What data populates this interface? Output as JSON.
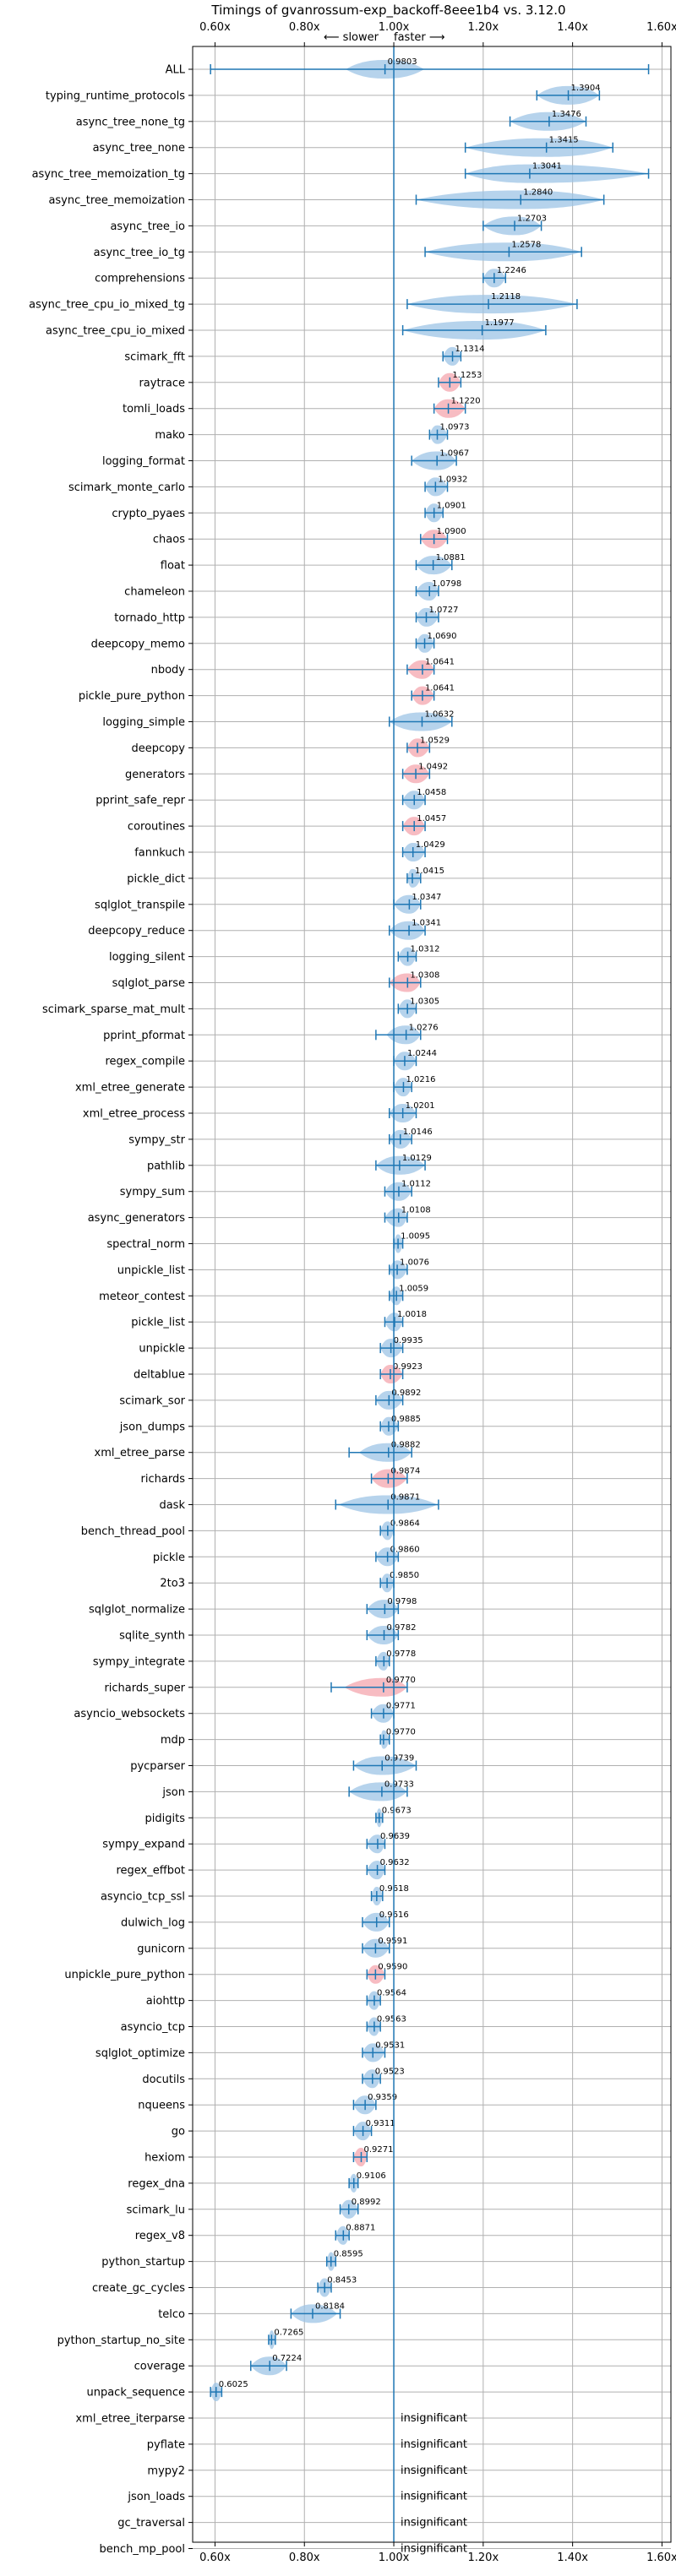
{
  "chart_data": {
    "type": "violin",
    "title": "Timings of gvanrossum-exp_backoff-8eee1b4 vs. 3.12.0",
    "subtitle_slower": "⟵ slower",
    "subtitle_faster": "faster ⟶",
    "x_ticks": [
      "0.60x",
      "0.80x",
      "1.00x",
      "1.20x",
      "1.40x",
      "1.60x"
    ],
    "x_tick_values": [
      0.6,
      0.8,
      1.0,
      1.2,
      1.4,
      1.6
    ],
    "xlim": [
      0.55,
      1.62
    ],
    "grid": true,
    "colors": {
      "violin": "#9dc4e6",
      "violin_highlight": "#f4a6ad",
      "line": "#1f77b4"
    },
    "benchmarks": [
      {
        "name": "ALL",
        "value": 0.9803,
        "lo": 0.59,
        "hi": 1.57,
        "spread": 0.04,
        "highlight": false,
        "label": "0.9803"
      },
      {
        "name": "typing_runtime_protocols",
        "value": 1.3904,
        "lo": 1.32,
        "hi": 1.46,
        "spread": 0.07,
        "highlight": false,
        "label": "1.3904"
      },
      {
        "name": "async_tree_none_tg",
        "value": 1.3476,
        "lo": 1.26,
        "hi": 1.43,
        "spread": 0.06,
        "highlight": false,
        "label": "1.3476"
      },
      {
        "name": "async_tree_none",
        "value": 1.3415,
        "lo": 1.16,
        "hi": 1.49,
        "spread": 0.1,
        "highlight": false,
        "label": "1.3415"
      },
      {
        "name": "async_tree_memoization_tg",
        "value": 1.3041,
        "lo": 1.16,
        "hi": 1.57,
        "spread": 0.13,
        "highlight": false,
        "label": "1.3041"
      },
      {
        "name": "async_tree_memoization",
        "value": 1.284,
        "lo": 1.05,
        "hi": 1.47,
        "spread": 0.14,
        "highlight": false,
        "label": "1.2840"
      },
      {
        "name": "async_tree_io",
        "value": 1.2703,
        "lo": 1.2,
        "hi": 1.33,
        "spread": 0.05,
        "highlight": false,
        "label": "1.2703"
      },
      {
        "name": "async_tree_io_tg",
        "value": 1.2578,
        "lo": 1.07,
        "hi": 1.42,
        "spread": 0.12,
        "highlight": false,
        "label": "1.2578"
      },
      {
        "name": "comprehensions",
        "value": 1.2246,
        "lo": 1.2,
        "hi": 1.25,
        "spread": 0.02,
        "highlight": false,
        "label": "1.2246"
      },
      {
        "name": "async_tree_cpu_io_mixed_tg",
        "value": 1.2118,
        "lo": 1.03,
        "hi": 1.41,
        "spread": 0.12,
        "highlight": false,
        "label": "1.2118"
      },
      {
        "name": "async_tree_cpu_io_mixed",
        "value": 1.1977,
        "lo": 1.02,
        "hi": 1.34,
        "spread": 0.11,
        "highlight": false,
        "label": "1.1977"
      },
      {
        "name": "scimark_fft",
        "value": 1.1314,
        "lo": 1.11,
        "hi": 1.15,
        "spread": 0.02,
        "highlight": false,
        "label": "1.1314"
      },
      {
        "name": "raytrace",
        "value": 1.1253,
        "lo": 1.1,
        "hi": 1.15,
        "spread": 0.02,
        "highlight": true,
        "label": "1.1253"
      },
      {
        "name": "tomli_loads",
        "value": 1.122,
        "lo": 1.09,
        "hi": 1.16,
        "spread": 0.03,
        "highlight": true,
        "label": "1.1220"
      },
      {
        "name": "mako",
        "value": 1.0973,
        "lo": 1.08,
        "hi": 1.12,
        "spread": 0.015,
        "highlight": false,
        "label": "1.0973"
      },
      {
        "name": "logging_format",
        "value": 1.0967,
        "lo": 1.04,
        "hi": 1.14,
        "spread": 0.04,
        "highlight": false,
        "label": "1.0967"
      },
      {
        "name": "scimark_monte_carlo",
        "value": 1.0932,
        "lo": 1.07,
        "hi": 1.12,
        "spread": 0.02,
        "highlight": false,
        "label": "1.0932"
      },
      {
        "name": "crypto_pyaes",
        "value": 1.0901,
        "lo": 1.07,
        "hi": 1.11,
        "spread": 0.02,
        "highlight": false,
        "label": "1.0901"
      },
      {
        "name": "chaos",
        "value": 1.09,
        "lo": 1.06,
        "hi": 1.12,
        "spread": 0.025,
        "highlight": true,
        "label": "1.0900"
      },
      {
        "name": "float",
        "value": 1.0881,
        "lo": 1.05,
        "hi": 1.13,
        "spread": 0.03,
        "highlight": false,
        "label": "1.0881"
      },
      {
        "name": "chameleon",
        "value": 1.0798,
        "lo": 1.05,
        "hi": 1.1,
        "spread": 0.02,
        "highlight": false,
        "label": "1.0798"
      },
      {
        "name": "tornado_http",
        "value": 1.0727,
        "lo": 1.05,
        "hi": 1.1,
        "spread": 0.025,
        "highlight": false,
        "label": "1.0727"
      },
      {
        "name": "deepcopy_memo",
        "value": 1.069,
        "lo": 1.05,
        "hi": 1.09,
        "spread": 0.015,
        "highlight": false,
        "label": "1.0690"
      },
      {
        "name": "nbody",
        "value": 1.0641,
        "lo": 1.03,
        "hi": 1.09,
        "spread": 0.02,
        "highlight": true,
        "label": "1.0641"
      },
      {
        "name": "pickle_pure_python",
        "value": 1.0641,
        "lo": 1.04,
        "hi": 1.09,
        "spread": 0.02,
        "highlight": true,
        "label": "1.0641"
      },
      {
        "name": "logging_simple",
        "value": 1.0632,
        "lo": 0.99,
        "hi": 1.13,
        "spread": 0.04,
        "highlight": false,
        "label": "1.0632"
      },
      {
        "name": "deepcopy",
        "value": 1.0529,
        "lo": 1.03,
        "hi": 1.08,
        "spread": 0.02,
        "highlight": true,
        "label": "1.0529"
      },
      {
        "name": "generators",
        "value": 1.0492,
        "lo": 1.02,
        "hi": 1.08,
        "spread": 0.025,
        "highlight": true,
        "label": "1.0492"
      },
      {
        "name": "pprint_safe_repr",
        "value": 1.0458,
        "lo": 1.02,
        "hi": 1.07,
        "spread": 0.02,
        "highlight": false,
        "label": "1.0458"
      },
      {
        "name": "coroutines",
        "value": 1.0457,
        "lo": 1.02,
        "hi": 1.07,
        "spread": 0.02,
        "highlight": true,
        "label": "1.0457"
      },
      {
        "name": "fannkuch",
        "value": 1.0429,
        "lo": 1.02,
        "hi": 1.07,
        "spread": 0.015,
        "highlight": false,
        "label": "1.0429"
      },
      {
        "name": "pickle_dict",
        "value": 1.0415,
        "lo": 1.03,
        "hi": 1.06,
        "spread": 0.012,
        "highlight": false,
        "label": "1.0415"
      },
      {
        "name": "sqlglot_transpile",
        "value": 1.0347,
        "lo": 1.0,
        "hi": 1.06,
        "spread": 0.02,
        "highlight": false,
        "label": "1.0347"
      },
      {
        "name": "deepcopy_reduce",
        "value": 1.0341,
        "lo": 0.99,
        "hi": 1.07,
        "spread": 0.025,
        "highlight": false,
        "label": "1.0341"
      },
      {
        "name": "logging_silent",
        "value": 1.0312,
        "lo": 1.01,
        "hi": 1.05,
        "spread": 0.015,
        "highlight": false,
        "label": "1.0312"
      },
      {
        "name": "sqlglot_parse",
        "value": 1.0308,
        "lo": 0.99,
        "hi": 1.06,
        "spread": 0.025,
        "highlight": true,
        "label": "1.0308"
      },
      {
        "name": "scimark_sparse_mat_mult",
        "value": 1.0305,
        "lo": 1.01,
        "hi": 1.05,
        "spread": 0.012,
        "highlight": false,
        "label": "1.0305"
      },
      {
        "name": "pprint_pformat",
        "value": 1.0276,
        "lo": 0.96,
        "hi": 1.06,
        "spread": 0.02,
        "highlight": false,
        "label": "1.0276"
      },
      {
        "name": "regex_compile",
        "value": 1.0244,
        "lo": 1.0,
        "hi": 1.05,
        "spread": 0.015,
        "highlight": false,
        "label": "1.0244"
      },
      {
        "name": "xml_etree_generate",
        "value": 1.0216,
        "lo": 1.0,
        "hi": 1.04,
        "spread": 0.015,
        "highlight": false,
        "label": "1.0216"
      },
      {
        "name": "xml_etree_process",
        "value": 1.0201,
        "lo": 0.99,
        "hi": 1.05,
        "spread": 0.02,
        "highlight": false,
        "label": "1.0201"
      },
      {
        "name": "sympy_str",
        "value": 1.0146,
        "lo": 0.99,
        "hi": 1.04,
        "spread": 0.02,
        "highlight": false,
        "label": "1.0146"
      },
      {
        "name": "pathlib",
        "value": 1.0129,
        "lo": 0.96,
        "hi": 1.07,
        "spread": 0.03,
        "highlight": false,
        "label": "1.0129"
      },
      {
        "name": "sympy_sum",
        "value": 1.0112,
        "lo": 0.98,
        "hi": 1.04,
        "spread": 0.02,
        "highlight": false,
        "label": "1.0112"
      },
      {
        "name": "async_generators",
        "value": 1.0108,
        "lo": 0.98,
        "hi": 1.03,
        "spread": 0.02,
        "highlight": false,
        "label": "1.0108"
      },
      {
        "name": "spectral_norm",
        "value": 1.0095,
        "lo": 1.0,
        "hi": 1.02,
        "spread": 0.008,
        "highlight": false,
        "label": "1.0095"
      },
      {
        "name": "unpickle_list",
        "value": 1.0076,
        "lo": 0.99,
        "hi": 1.03,
        "spread": 0.015,
        "highlight": false,
        "label": "1.0076"
      },
      {
        "name": "meteor_contest",
        "value": 1.0059,
        "lo": 0.99,
        "hi": 1.02,
        "spread": 0.01,
        "highlight": false,
        "label": "1.0059"
      },
      {
        "name": "pickle_list",
        "value": 1.0018,
        "lo": 0.98,
        "hi": 1.02,
        "spread": 0.015,
        "highlight": false,
        "label": "1.0018"
      },
      {
        "name": "unpickle",
        "value": 0.9935,
        "lo": 0.97,
        "hi": 1.02,
        "spread": 0.015,
        "highlight": false,
        "label": "0.9935"
      },
      {
        "name": "deltablue",
        "value": 0.9923,
        "lo": 0.97,
        "hi": 1.02,
        "spread": 0.02,
        "highlight": true,
        "label": "0.9923"
      },
      {
        "name": "scimark_sor",
        "value": 0.9892,
        "lo": 0.96,
        "hi": 1.02,
        "spread": 0.02,
        "highlight": false,
        "label": "0.9892"
      },
      {
        "name": "json_dumps",
        "value": 0.9885,
        "lo": 0.97,
        "hi": 1.01,
        "spread": 0.015,
        "highlight": false,
        "label": "0.9885"
      },
      {
        "name": "xml_etree_parse",
        "value": 0.9882,
        "lo": 0.9,
        "hi": 1.04,
        "spread": 0.03,
        "highlight": false,
        "label": "0.9882"
      },
      {
        "name": "richards",
        "value": 0.9874,
        "lo": 0.95,
        "hi": 1.03,
        "spread": 0.04,
        "highlight": true,
        "label": "0.9874"
      },
      {
        "name": "dask",
        "value": 0.9871,
        "lo": 0.87,
        "hi": 1.1,
        "spread": 0.05,
        "highlight": false,
        "label": "0.9871"
      },
      {
        "name": "bench_thread_pool",
        "value": 0.9864,
        "lo": 0.97,
        "hi": 1.0,
        "spread": 0.012,
        "highlight": false,
        "label": "0.9864"
      },
      {
        "name": "pickle",
        "value": 0.986,
        "lo": 0.96,
        "hi": 1.01,
        "spread": 0.015,
        "highlight": false,
        "label": "0.9860"
      },
      {
        "name": "2to3",
        "value": 0.985,
        "lo": 0.97,
        "hi": 1.0,
        "spread": 0.01,
        "highlight": false,
        "label": "0.9850"
      },
      {
        "name": "sqlglot_normalize",
        "value": 0.9798,
        "lo": 0.94,
        "hi": 1.01,
        "spread": 0.02,
        "highlight": false,
        "label": "0.9798"
      },
      {
        "name": "sqlite_synth",
        "value": 0.9782,
        "lo": 0.94,
        "hi": 1.01,
        "spread": 0.02,
        "highlight": false,
        "label": "0.9782"
      },
      {
        "name": "sympy_integrate",
        "value": 0.9778,
        "lo": 0.96,
        "hi": 0.99,
        "spread": 0.012,
        "highlight": false,
        "label": "0.9778"
      },
      {
        "name": "richards_super",
        "value": 0.977,
        "lo": 0.86,
        "hi": 1.03,
        "spread": 0.04,
        "highlight": true,
        "label": "0.9770"
      },
      {
        "name": "asyncio_websockets",
        "value": 0.9771,
        "lo": 0.95,
        "hi": 1.0,
        "spread": 0.015,
        "highlight": false,
        "label": "0.9771"
      },
      {
        "name": "mdp",
        "value": 0.977,
        "lo": 0.97,
        "hi": 0.99,
        "spread": 0.008,
        "highlight": false,
        "label": "0.9770"
      },
      {
        "name": "pycparser",
        "value": 0.9739,
        "lo": 0.91,
        "hi": 1.05,
        "spread": 0.04,
        "highlight": false,
        "label": "0.9739"
      },
      {
        "name": "json",
        "value": 0.9733,
        "lo": 0.9,
        "hi": 1.03,
        "spread": 0.04,
        "highlight": false,
        "label": "0.9733"
      },
      {
        "name": "pidigits",
        "value": 0.9673,
        "lo": 0.96,
        "hi": 0.975,
        "spread": 0.005,
        "highlight": false,
        "label": "0.9673"
      },
      {
        "name": "sympy_expand",
        "value": 0.9639,
        "lo": 0.94,
        "hi": 0.98,
        "spread": 0.012,
        "highlight": false,
        "label": "0.9639"
      },
      {
        "name": "regex_effbot",
        "value": 0.9632,
        "lo": 0.94,
        "hi": 0.98,
        "spread": 0.012,
        "highlight": false,
        "label": "0.9632"
      },
      {
        "name": "asyncio_tcp_ssl",
        "value": 0.9618,
        "lo": 0.95,
        "hi": 0.975,
        "spread": 0.008,
        "highlight": false,
        "label": "0.9618"
      },
      {
        "name": "dulwich_log",
        "value": 0.9616,
        "lo": 0.93,
        "hi": 0.99,
        "spread": 0.015,
        "highlight": false,
        "label": "0.9616"
      },
      {
        "name": "gunicorn",
        "value": 0.9591,
        "lo": 0.93,
        "hi": 0.99,
        "spread": 0.015,
        "highlight": false,
        "label": "0.9591"
      },
      {
        "name": "unpickle_pure_python",
        "value": 0.959,
        "lo": 0.94,
        "hi": 0.98,
        "spread": 0.012,
        "highlight": true,
        "label": "0.9590"
      },
      {
        "name": "aiohttp",
        "value": 0.9564,
        "lo": 0.94,
        "hi": 0.97,
        "spread": 0.01,
        "highlight": false,
        "label": "0.9564"
      },
      {
        "name": "asyncio_tcp",
        "value": 0.9563,
        "lo": 0.94,
        "hi": 0.97,
        "spread": 0.01,
        "highlight": false,
        "label": "0.9563"
      },
      {
        "name": "sqlglot_optimize",
        "value": 0.9531,
        "lo": 0.93,
        "hi": 0.98,
        "spread": 0.012,
        "highlight": false,
        "label": "0.9531"
      },
      {
        "name": "docutils",
        "value": 0.9523,
        "lo": 0.93,
        "hi": 0.97,
        "spread": 0.012,
        "highlight": false,
        "label": "0.9523"
      },
      {
        "name": "nqueens",
        "value": 0.9359,
        "lo": 0.91,
        "hi": 0.96,
        "spread": 0.015,
        "highlight": false,
        "label": "0.9359"
      },
      {
        "name": "go",
        "value": 0.9311,
        "lo": 0.91,
        "hi": 0.95,
        "spread": 0.012,
        "highlight": false,
        "label": "0.9311"
      },
      {
        "name": "hexiom",
        "value": 0.9271,
        "lo": 0.91,
        "hi": 0.94,
        "spread": 0.01,
        "highlight": true,
        "label": "0.9271"
      },
      {
        "name": "regex_dna",
        "value": 0.9106,
        "lo": 0.9,
        "hi": 0.92,
        "spread": 0.008,
        "highlight": false,
        "label": "0.9106"
      },
      {
        "name": "scimark_lu",
        "value": 0.8992,
        "lo": 0.88,
        "hi": 0.92,
        "spread": 0.012,
        "highlight": false,
        "label": "0.8992"
      },
      {
        "name": "regex_v8",
        "value": 0.8871,
        "lo": 0.87,
        "hi": 0.9,
        "spread": 0.01,
        "highlight": false,
        "label": "0.8871"
      },
      {
        "name": "python_startup",
        "value": 0.8595,
        "lo": 0.85,
        "hi": 0.87,
        "spread": 0.006,
        "highlight": false,
        "label": "0.8595"
      },
      {
        "name": "create_gc_cycles",
        "value": 0.8453,
        "lo": 0.83,
        "hi": 0.86,
        "spread": 0.01,
        "highlight": false,
        "label": "0.8453"
      },
      {
        "name": "telco",
        "value": 0.8184,
        "lo": 0.77,
        "hi": 0.88,
        "spread": 0.025,
        "highlight": false,
        "label": "0.8184"
      },
      {
        "name": "python_startup_no_site",
        "value": 0.7265,
        "lo": 0.72,
        "hi": 0.735,
        "spread": 0.006,
        "highlight": false,
        "label": "0.7265"
      },
      {
        "name": "coverage",
        "value": 0.7224,
        "lo": 0.68,
        "hi": 0.76,
        "spread": 0.02,
        "highlight": false,
        "label": "0.7224"
      },
      {
        "name": "unpack_sequence",
        "value": 0.6025,
        "lo": 0.59,
        "hi": 0.615,
        "spread": 0.008,
        "highlight": false,
        "label": "0.6025"
      },
      {
        "name": "xml_etree_iterparse",
        "value": null,
        "label": "insignificant"
      },
      {
        "name": "pyflate",
        "value": null,
        "label": "insignificant"
      },
      {
        "name": "mypy2",
        "value": null,
        "label": "insignificant"
      },
      {
        "name": "json_loads",
        "value": null,
        "label": "insignificant"
      },
      {
        "name": "gc_traversal",
        "value": null,
        "label": "insignificant"
      },
      {
        "name": "bench_mp_pool",
        "value": null,
        "label": "insignificant"
      }
    ]
  }
}
